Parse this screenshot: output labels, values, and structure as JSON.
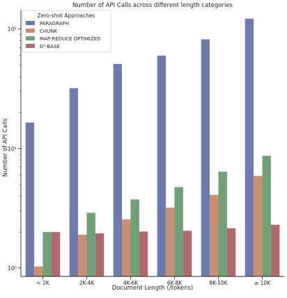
{
  "chart_data": {
    "type": "bar",
    "title": "Number of API Calls across different length categories",
    "xlabel": "Document Length (/tokens)",
    "ylabel": "Number of API Calls",
    "yscale": "log",
    "ylim": [
      0.85,
      145
    ],
    "yticks": [
      {
        "value": 1,
        "label": "10⁰"
      },
      {
        "value": 10,
        "label": "10¹"
      },
      {
        "value": 100,
        "label": "10²"
      }
    ],
    "categories": [
      "< 2K",
      "2K-4K",
      "4K-6K",
      "6K-8K",
      "8K-10K",
      "≥ 10K"
    ],
    "legend": {
      "title": "Zero-shot Approaches",
      "position": "top-left"
    },
    "grid": false,
    "series": [
      {
        "name": "PARAGRAPH",
        "color": "#6e7aae",
        "values": [
          16.5,
          32,
          51,
          60,
          82,
          122
        ]
      },
      {
        "name": "CHUNK",
        "color": "#c98f72",
        "values": [
          1.03,
          1.9,
          2.55,
          3.2,
          4.1,
          5.9
        ]
      },
      {
        "name": "MAP-REDUCE OPTIMIZED",
        "color": "#6ea276",
        "values": [
          2.0,
          2.9,
          3.75,
          4.75,
          6.4,
          8.7
        ]
      },
      {
        "name": "D³-BASE",
        "color": "#b06a6e",
        "values": [
          2.0,
          1.95,
          2.02,
          2.05,
          2.15,
          2.3
        ]
      }
    ]
  }
}
